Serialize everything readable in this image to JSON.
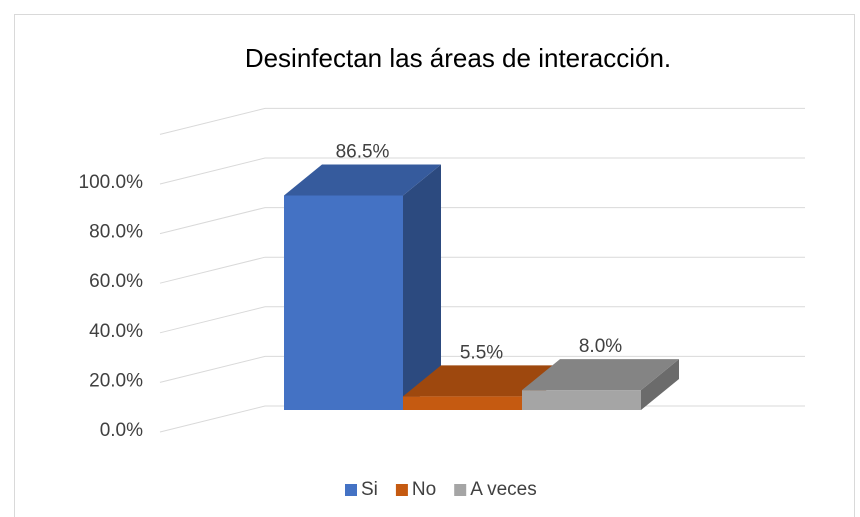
{
  "chart_data": {
    "type": "bar3d",
    "title": "Desinfectan las áreas de interacción.",
    "categories": [
      "Si",
      "No",
      "A veces"
    ],
    "values": [
      86.5,
      5.5,
      8.0
    ],
    "value_labels": [
      "86.5%",
      "5.5%",
      "8.0%"
    ],
    "colors": [
      "#4472c4",
      "#c55a11",
      "#a5a5a5"
    ],
    "ylim": [
      0,
      120
    ],
    "yticks": [
      {
        "value": 0,
        "label": "0.0%"
      },
      {
        "value": 20,
        "label": "20.0%"
      },
      {
        "value": 40,
        "label": "40.0%"
      },
      {
        "value": 60,
        "label": "60.0%"
      },
      {
        "value": 80,
        "label": "80.0%"
      },
      {
        "value": 100,
        "label": "100.0%"
      }
    ],
    "grid": true,
    "legend": "bottom"
  }
}
